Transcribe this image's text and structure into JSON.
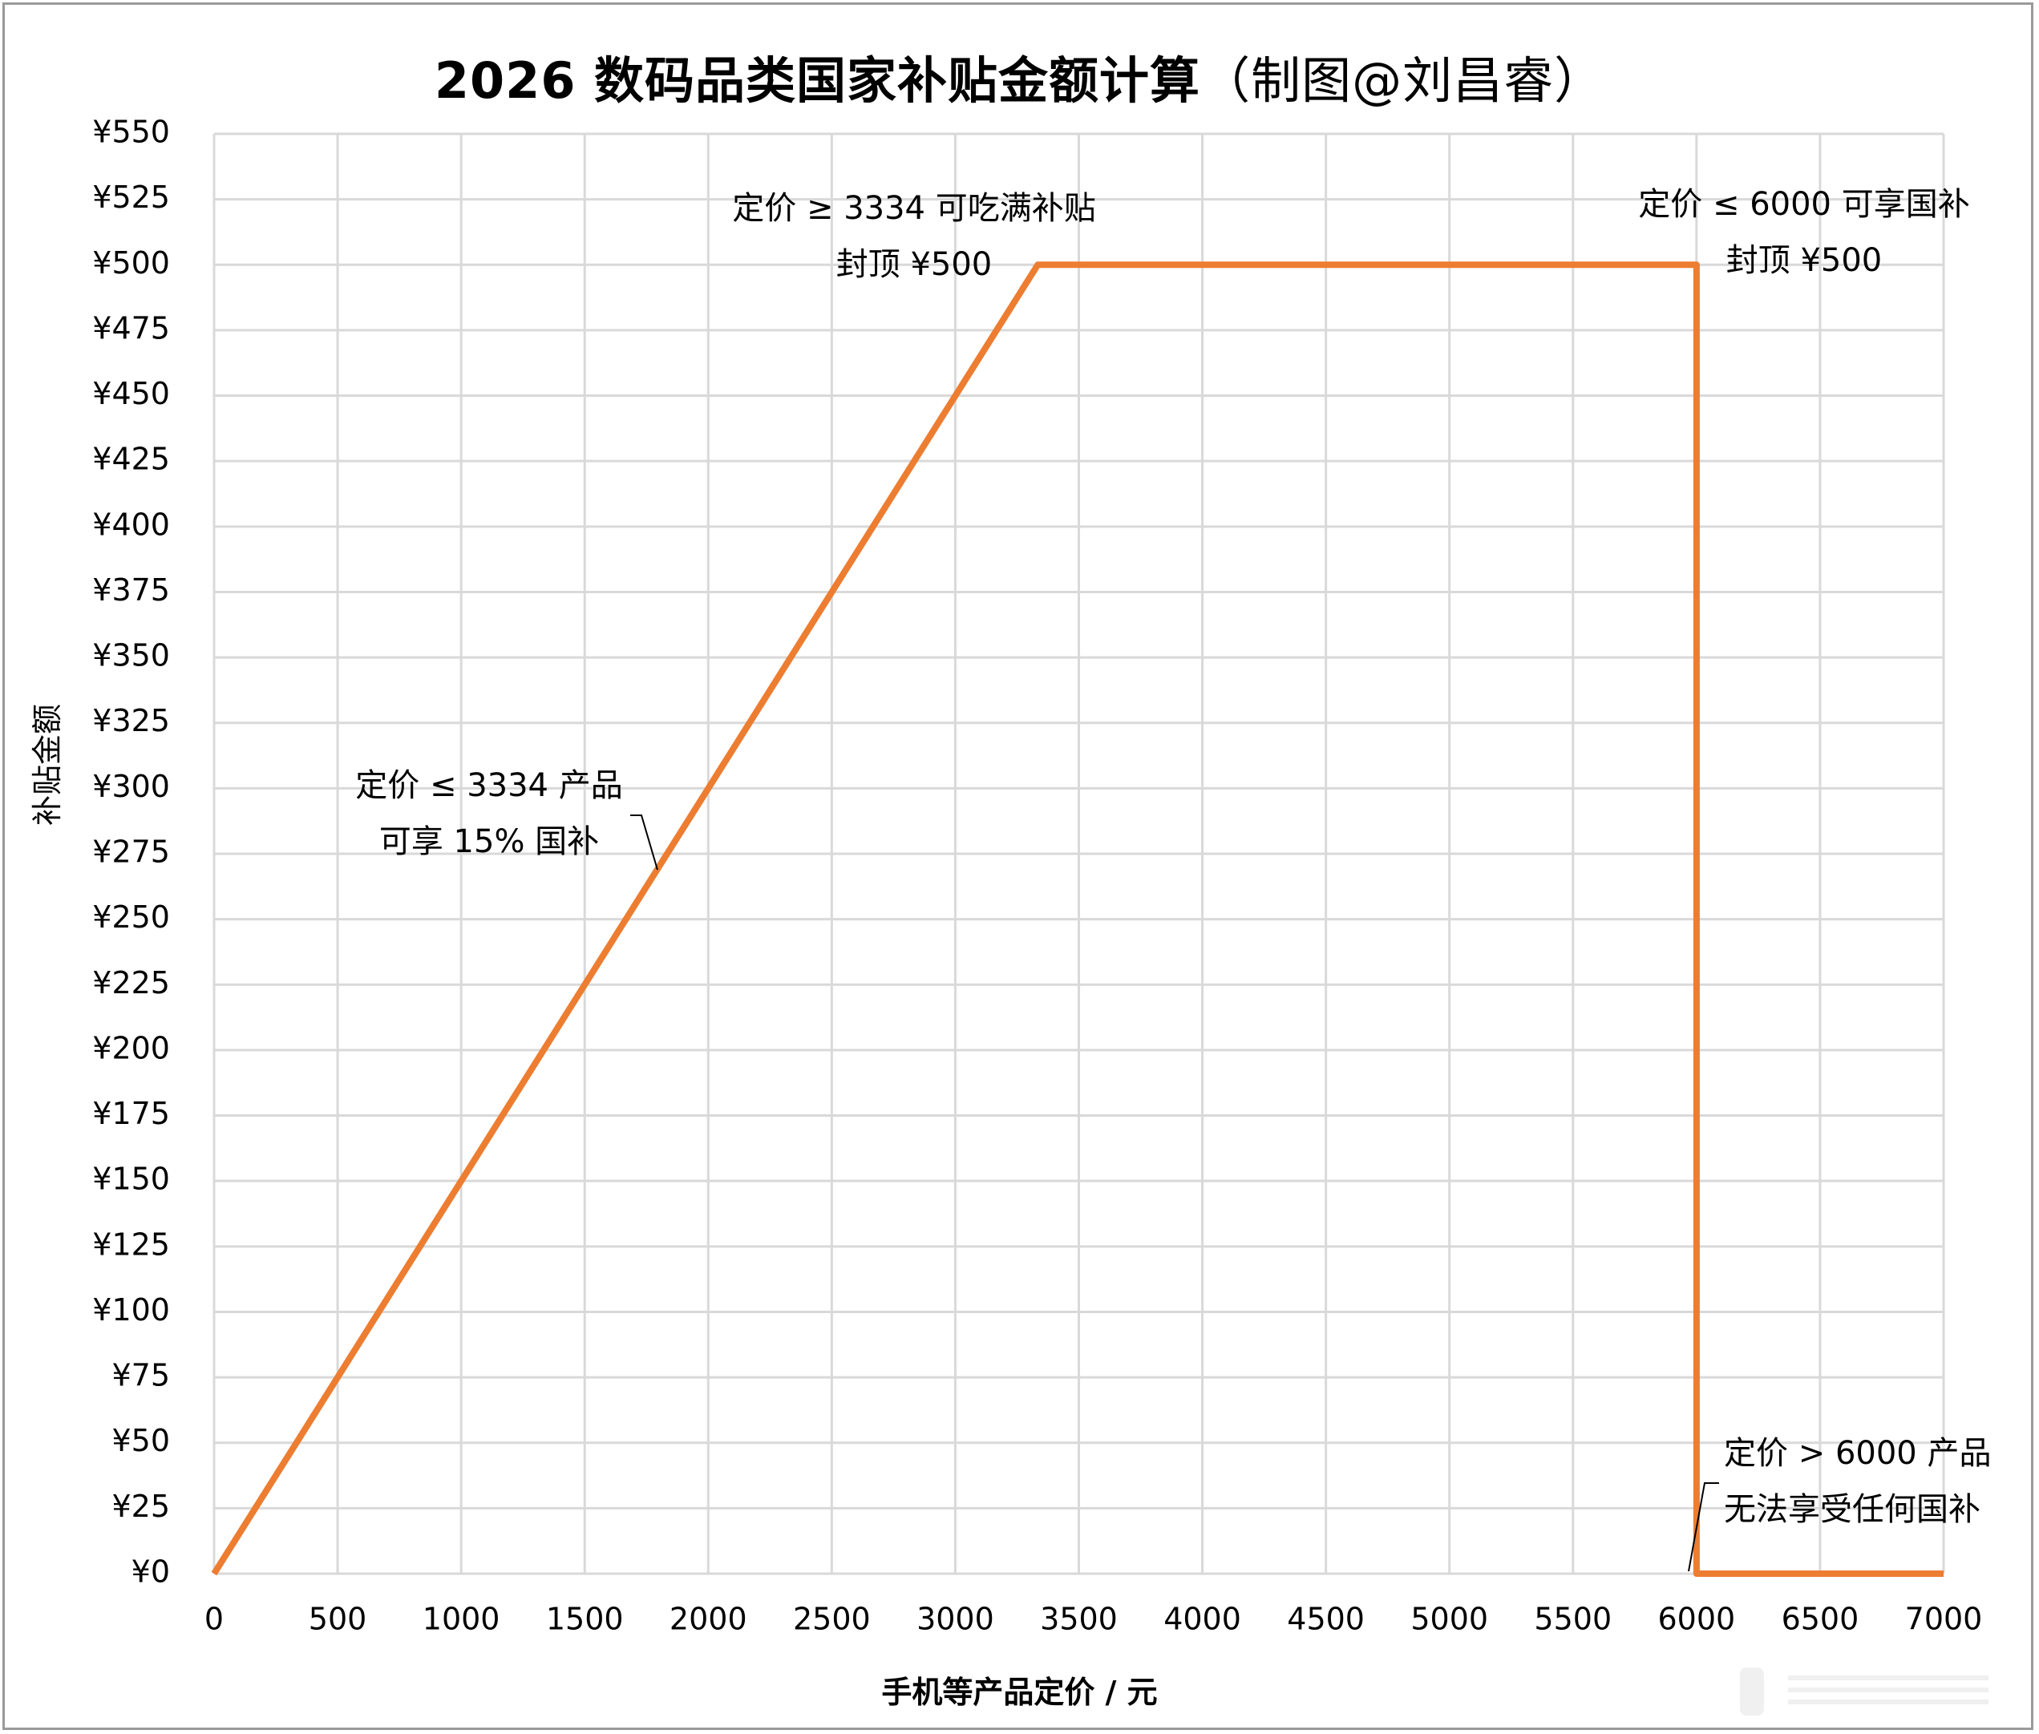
{
  "title": {
    "main": "2026 数码品类国家补贴金额计算",
    "credit": "（制图@刘昌睿）"
  },
  "axes": {
    "x_label": "手机等产品定价 / 元",
    "y_label": "补贴金额",
    "x_ticks": [
      "0",
      "500",
      "1000",
      "1500",
      "2000",
      "2500",
      "3000",
      "3500",
      "4000",
      "4500",
      "5000",
      "5500",
      "6000",
      "6500",
      "7000"
    ],
    "y_ticks": [
      "¥550",
      "¥525",
      "¥500",
      "¥475",
      "¥450",
      "¥425",
      "¥400",
      "¥375",
      "¥350",
      "¥325",
      "¥300",
      "¥275",
      "¥250",
      "¥225",
      "¥200",
      "¥175",
      "¥150",
      "¥125",
      "¥100",
      "¥75",
      "¥50",
      "¥25",
      "¥0"
    ]
  },
  "annotations": {
    "cap_start": {
      "line1": "定价 ≥ 3334 可吃满补贴",
      "line2": "封顶 ¥500"
    },
    "cap_end": {
      "line1": "定价 ≤ 6000 可享国补",
      "line2": "封顶 ¥500"
    },
    "ramp": {
      "line1": "定价 ≤ 3334 产品",
      "line2": "可享 15% 国补"
    },
    "none": {
      "line1": "定价 > 6000 产品",
      "line2": "无法享受任何国补"
    }
  },
  "colors": {
    "line": "#ED7D31",
    "grid": "#D9D9D9",
    "frame": "#9A9A9A"
  },
  "chart_data": {
    "type": "line",
    "title": "2026 数码品类国家补贴金额计算（制图@刘昌睿）",
    "xlabel": "手机等产品定价 / 元",
    "ylabel": "补贴金额",
    "xlim": [
      0,
      7000
    ],
    "ylim": [
      0,
      550
    ],
    "x_tick_step": 500,
    "y_tick_step": 25,
    "grid": true,
    "legend": null,
    "series": [
      {
        "name": "补贴金额",
        "color": "#ED7D31",
        "x": [
          0,
          3334,
          6000,
          6000,
          7000
        ],
        "y": [
          0,
          500,
          500,
          0,
          0
        ]
      }
    ],
    "annotations": [
      {
        "text": "定价 ≤ 3334 产品 可享 15% 国补",
        "x": 1800,
        "y": 270
      },
      {
        "text": "定价 ≥ 3334 可吃满补贴 封顶 ¥500",
        "x": 3334,
        "y": 500
      },
      {
        "text": "定价 ≤ 6000 可享国补 封顶 ¥500",
        "x": 6000,
        "y": 500
      },
      {
        "text": "定价 > 6000 产品 无法享受任何国补",
        "x": 6000,
        "y": 0
      }
    ]
  }
}
